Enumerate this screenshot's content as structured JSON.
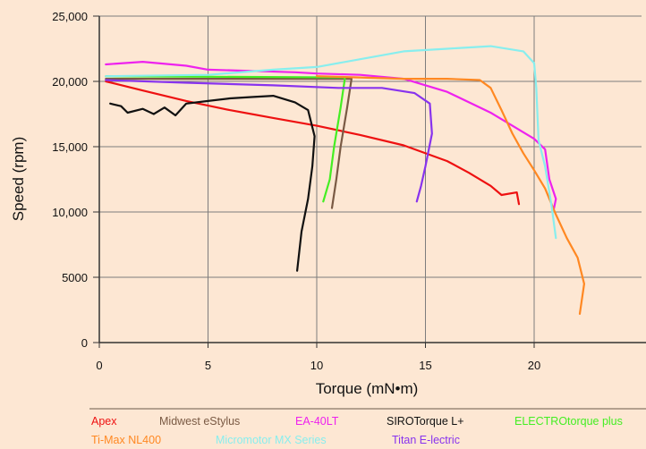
{
  "chart_data": {
    "type": "line",
    "title": "",
    "xlabel": "Torque (mN•m)",
    "ylabel": "Speed (rpm)",
    "xlim": [
      0,
      25
    ],
    "ylim": [
      0,
      25000
    ],
    "x_ticks": [
      "0",
      "5",
      "10",
      "15",
      "20"
    ],
    "y_ticks": [
      "0",
      "5000",
      "10,000",
      "15,000",
      "20,000",
      "25,000"
    ],
    "grid": true,
    "legend_position": "bottom",
    "series": [
      {
        "name": "Apex",
        "color": "#ee1111",
        "points": [
          [
            0.3,
            20000
          ],
          [
            2,
            19300
          ],
          [
            4,
            18500
          ],
          [
            6,
            17800
          ],
          [
            8,
            17200
          ],
          [
            10,
            16600
          ],
          [
            12,
            15900
          ],
          [
            14,
            15100
          ],
          [
            16,
            13900
          ],
          [
            17,
            13000
          ],
          [
            18,
            12000
          ],
          [
            18.5,
            11300
          ],
          [
            19.2,
            11500
          ],
          [
            19.3,
            10600
          ]
        ]
      },
      {
        "name": "Midwest eStylus",
        "color": "#7a5a44",
        "points": [
          [
            0.3,
            20200
          ],
          [
            11.6,
            20200
          ],
          [
            11.4,
            18000
          ],
          [
            11.1,
            15000
          ],
          [
            10.9,
            12500
          ],
          [
            10.7,
            10300
          ]
        ]
      },
      {
        "name": "EA-40LT",
        "color": "#ee22ee",
        "points": [
          [
            0.3,
            21300
          ],
          [
            2,
            21500
          ],
          [
            4,
            21200
          ],
          [
            5,
            20900
          ],
          [
            7,
            20800
          ],
          [
            9,
            20700
          ],
          [
            10,
            20600
          ],
          [
            12,
            20500
          ],
          [
            14,
            20200
          ],
          [
            16,
            19200
          ],
          [
            18,
            17600
          ],
          [
            19,
            16600
          ],
          [
            20,
            15600
          ],
          [
            20.5,
            14800
          ],
          [
            20.7,
            12500
          ],
          [
            21,
            11000
          ],
          [
            20.9,
            10200
          ]
        ]
      },
      {
        "name": "SIROTorque L+",
        "color": "#111111",
        "points": [
          [
            0.5,
            18300
          ],
          [
            1,
            18100
          ],
          [
            1.3,
            17600
          ],
          [
            2,
            17900
          ],
          [
            2.5,
            17500
          ],
          [
            3,
            18000
          ],
          [
            3.5,
            17400
          ],
          [
            4,
            18300
          ],
          [
            5,
            18500
          ],
          [
            6,
            18700
          ],
          [
            7,
            18800
          ],
          [
            8,
            18900
          ],
          [
            9,
            18400
          ],
          [
            9.6,
            17800
          ],
          [
            9.9,
            15800
          ],
          [
            9.8,
            13500
          ],
          [
            9.6,
            11000
          ],
          [
            9.3,
            8500
          ],
          [
            9.1,
            5500
          ]
        ]
      },
      {
        "name": "ELECTROtorque plus",
        "color": "#44ee22",
        "points": [
          [
            0.3,
            20400
          ],
          [
            11.3,
            20300
          ],
          [
            11.1,
            18000
          ],
          [
            10.8,
            15000
          ],
          [
            10.6,
            12500
          ],
          [
            10.3,
            10800
          ]
        ]
      },
      {
        "name": "Ti-Max NL400",
        "color": "#ff8822",
        "points": [
          [
            10,
            20400
          ],
          [
            12,
            20300
          ],
          [
            14,
            20200
          ],
          [
            16,
            20200
          ],
          [
            17.5,
            20100
          ],
          [
            18,
            19500
          ],
          [
            18.5,
            17800
          ],
          [
            19,
            16000
          ],
          [
            19.5,
            14500
          ],
          [
            20,
            13200
          ],
          [
            20.5,
            11800
          ],
          [
            21,
            9800
          ],
          [
            21.5,
            8000
          ],
          [
            22,
            6500
          ],
          [
            22.3,
            4500
          ],
          [
            22.1,
            2200
          ]
        ]
      },
      {
        "name": "Micromotor MX Series",
        "color": "#88eeee",
        "points": [
          [
            0.3,
            20400
          ],
          [
            5,
            20500
          ],
          [
            8,
            20900
          ],
          [
            10,
            21100
          ],
          [
            12,
            21700
          ],
          [
            14,
            22300
          ],
          [
            16,
            22500
          ],
          [
            18,
            22700
          ],
          [
            19.5,
            22300
          ],
          [
            20,
            21400
          ],
          [
            20.1,
            19500
          ],
          [
            20.2,
            15500
          ],
          [
            20.5,
            13500
          ],
          [
            20.8,
            10500
          ],
          [
            21,
            8000
          ]
        ]
      },
      {
        "name": "Titan E-lectric",
        "color": "#8833ee",
        "points": [
          [
            0.3,
            20100
          ],
          [
            4,
            19900
          ],
          [
            8,
            19700
          ],
          [
            11,
            19500
          ],
          [
            13,
            19500
          ],
          [
            14.5,
            19100
          ],
          [
            15.2,
            18300
          ],
          [
            15.3,
            16000
          ],
          [
            15,
            13500
          ],
          [
            14.8,
            12000
          ],
          [
            14.6,
            10800
          ]
        ]
      }
    ]
  }
}
